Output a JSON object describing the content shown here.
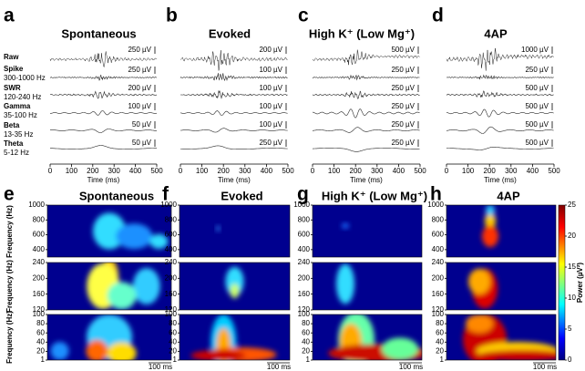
{
  "trace_panels": [
    {
      "letter": "a",
      "title": "Spontaneous",
      "scales": [
        "250 µV",
        "250 µV",
        "200 µV",
        "100 µV",
        "50 µV",
        "50 µV"
      ]
    },
    {
      "letter": "b",
      "title": "Evoked",
      "scales": [
        "200 µV",
        "100 µV",
        "100 µV",
        "100 µV",
        "100 µV",
        "250 µV"
      ]
    },
    {
      "letter": "c",
      "title": "High K⁺ (Low Mg⁺)",
      "scales": [
        "500 µV",
        "250 µV",
        "250 µV",
        "250 µV",
        "250 µV",
        "250 µV"
      ]
    },
    {
      "letter": "d",
      "title": "4AP",
      "scales": [
        "1000 µV",
        "250 µV",
        "500 µV",
        "500 µV",
        "500 µV",
        "500 µV"
      ]
    }
  ],
  "trace_rows": [
    {
      "name": "Raw"
    },
    {
      "name": "Spike",
      "band": "300-1000 Hz"
    },
    {
      "name": "SWR",
      "band": "120-240 Hz"
    },
    {
      "name": "Gamma",
      "band": "35-100 Hz"
    },
    {
      "name": "Beta",
      "band": "13-35 Hz"
    },
    {
      "name": "Theta",
      "band": "5-12 Hz"
    }
  ],
  "time_axis": {
    "label": "Time (ms)",
    "xlim": [
      0,
      500
    ],
    "xticks": [
      0,
      100,
      200,
      300,
      400,
      500
    ]
  },
  "spectrogram_panels": [
    {
      "letter": "e",
      "title": "Spontaneous"
    },
    {
      "letter": "f",
      "title": "Evoked"
    },
    {
      "letter": "g",
      "title": "High K⁺ (Low Mg⁺)"
    },
    {
      "letter": "h",
      "title": "4AP"
    }
  ],
  "frequency_label": "Frequency (Hz)",
  "frequency_rows": [
    {
      "ylim": [
        300,
        1000
      ],
      "yticks": [
        400,
        600,
        800,
        1000
      ]
    },
    {
      "ylim": [
        120,
        240
      ],
      "yticks": [
        120,
        160,
        200,
        240
      ]
    },
    {
      "ylim": [
        1,
        100
      ],
      "yticks": [
        1,
        20,
        40,
        60,
        80,
        100
      ]
    }
  ],
  "time_scale_bar": "100 ms",
  "colorbar": {
    "label": "Power (µV²)",
    "ylim": [
      0,
      25
    ],
    "yticks": [
      0,
      5,
      10,
      15,
      20,
      25
    ]
  }
}
